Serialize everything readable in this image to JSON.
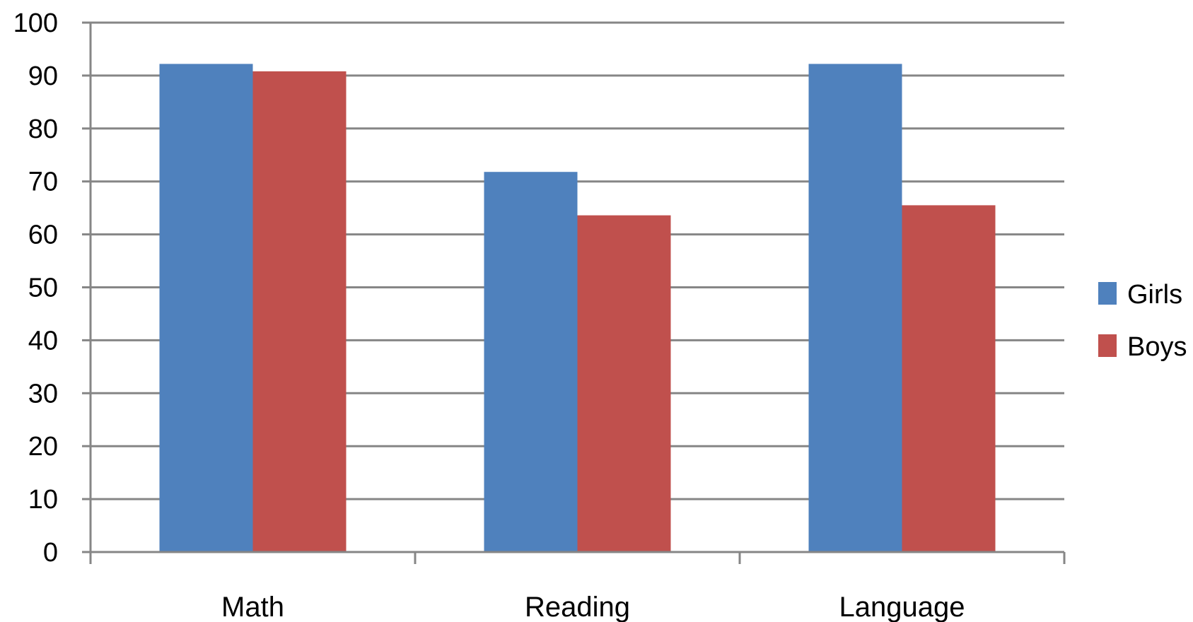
{
  "chart_data": {
    "type": "bar",
    "title": "",
    "xlabel": "",
    "ylabel": "",
    "categories": [
      "Math",
      "Reading",
      "Language"
    ],
    "series": [
      {
        "name": "Girls",
        "values": [
          92.2,
          71.8,
          92.2
        ],
        "color": "#4F81BD"
      },
      {
        "name": "Boys",
        "values": [
          90.8,
          63.6,
          65.5
        ],
        "color": "#C0504D"
      }
    ],
    "ylim": [
      0,
      100
    ],
    "yticks": [
      0,
      10,
      20,
      30,
      40,
      50,
      60,
      70,
      80,
      90,
      100
    ],
    "grid": true,
    "legend_position": "right",
    "axis_color": "#868686",
    "grid_color": "#868686"
  }
}
